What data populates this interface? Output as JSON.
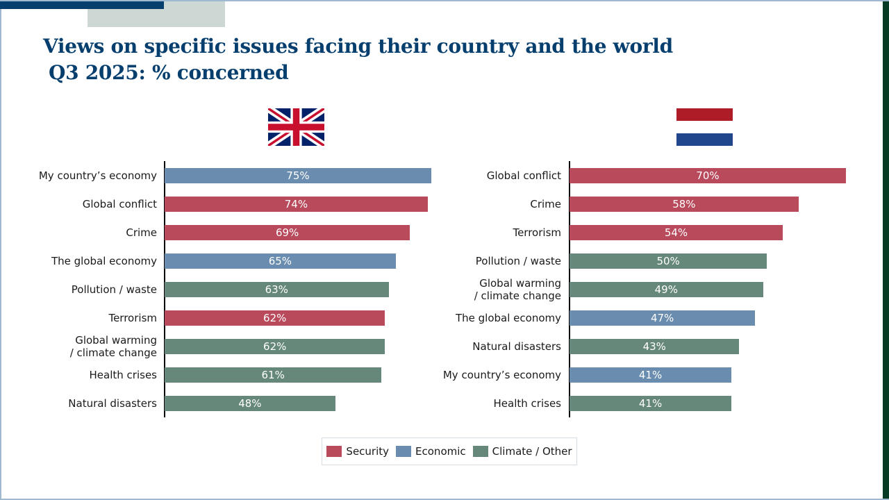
{
  "header": {
    "title": "Views on specific issues facing their country and the world",
    "subtitle_bold": "Q3 2025:",
    "subtitle_rest": " % concerned"
  },
  "colors": {
    "security": "#b84a5c",
    "economic": "#6a8daf",
    "climate_other": "#66887a",
    "title": "#063f6e"
  },
  "chart_data": [
    {
      "type": "bar",
      "orientation": "horizontal",
      "panel": "United Kingdom",
      "flag_icon": "uk-flag-icon",
      "categories": [
        "My country’s economy",
        "Global conflict",
        "Crime",
        "The global economy",
        "Pollution / waste",
        "Terrorism",
        "Global warming\n/ climate change",
        "Health crises",
        "Natural disasters"
      ],
      "values": [
        75,
        74,
        69,
        65,
        63,
        62,
        62,
        61,
        48
      ],
      "value_labels": [
        "75%",
        "74%",
        "69%",
        "65%",
        "63%",
        "62%",
        "62%",
        "61%",
        "48%"
      ],
      "groups": [
        "economic",
        "security",
        "security",
        "economic",
        "climate_other",
        "security",
        "climate_other",
        "climate_other",
        "climate_other"
      ],
      "xlim": [
        0,
        75
      ],
      "unit": "%"
    },
    {
      "type": "bar",
      "orientation": "horizontal",
      "panel": "Netherlands",
      "flag_icon": "nl-flag-icon",
      "categories": [
        "Global conflict",
        "Crime",
        "Terrorism",
        "Pollution / waste",
        "Global warming\n/ climate change",
        "The global economy",
        "Natural disasters",
        "My country’s economy",
        "Health crises"
      ],
      "values": [
        70,
        58,
        54,
        50,
        49,
        47,
        43,
        41,
        41
      ],
      "value_labels": [
        "70%",
        "58%",
        "54%",
        "50%",
        "49%",
        "47%",
        "43%",
        "41%",
        "41%"
      ],
      "groups": [
        "security",
        "security",
        "security",
        "climate_other",
        "climate_other",
        "economic",
        "climate_other",
        "economic",
        "climate_other"
      ],
      "xlim": [
        0,
        70
      ],
      "unit": "%"
    }
  ],
  "legend": {
    "placement": "bottom-center",
    "items": [
      {
        "label": "Security",
        "group": "security"
      },
      {
        "label": "Economic",
        "group": "economic"
      },
      {
        "label": "Climate / Other",
        "group": "climate_other"
      }
    ]
  }
}
